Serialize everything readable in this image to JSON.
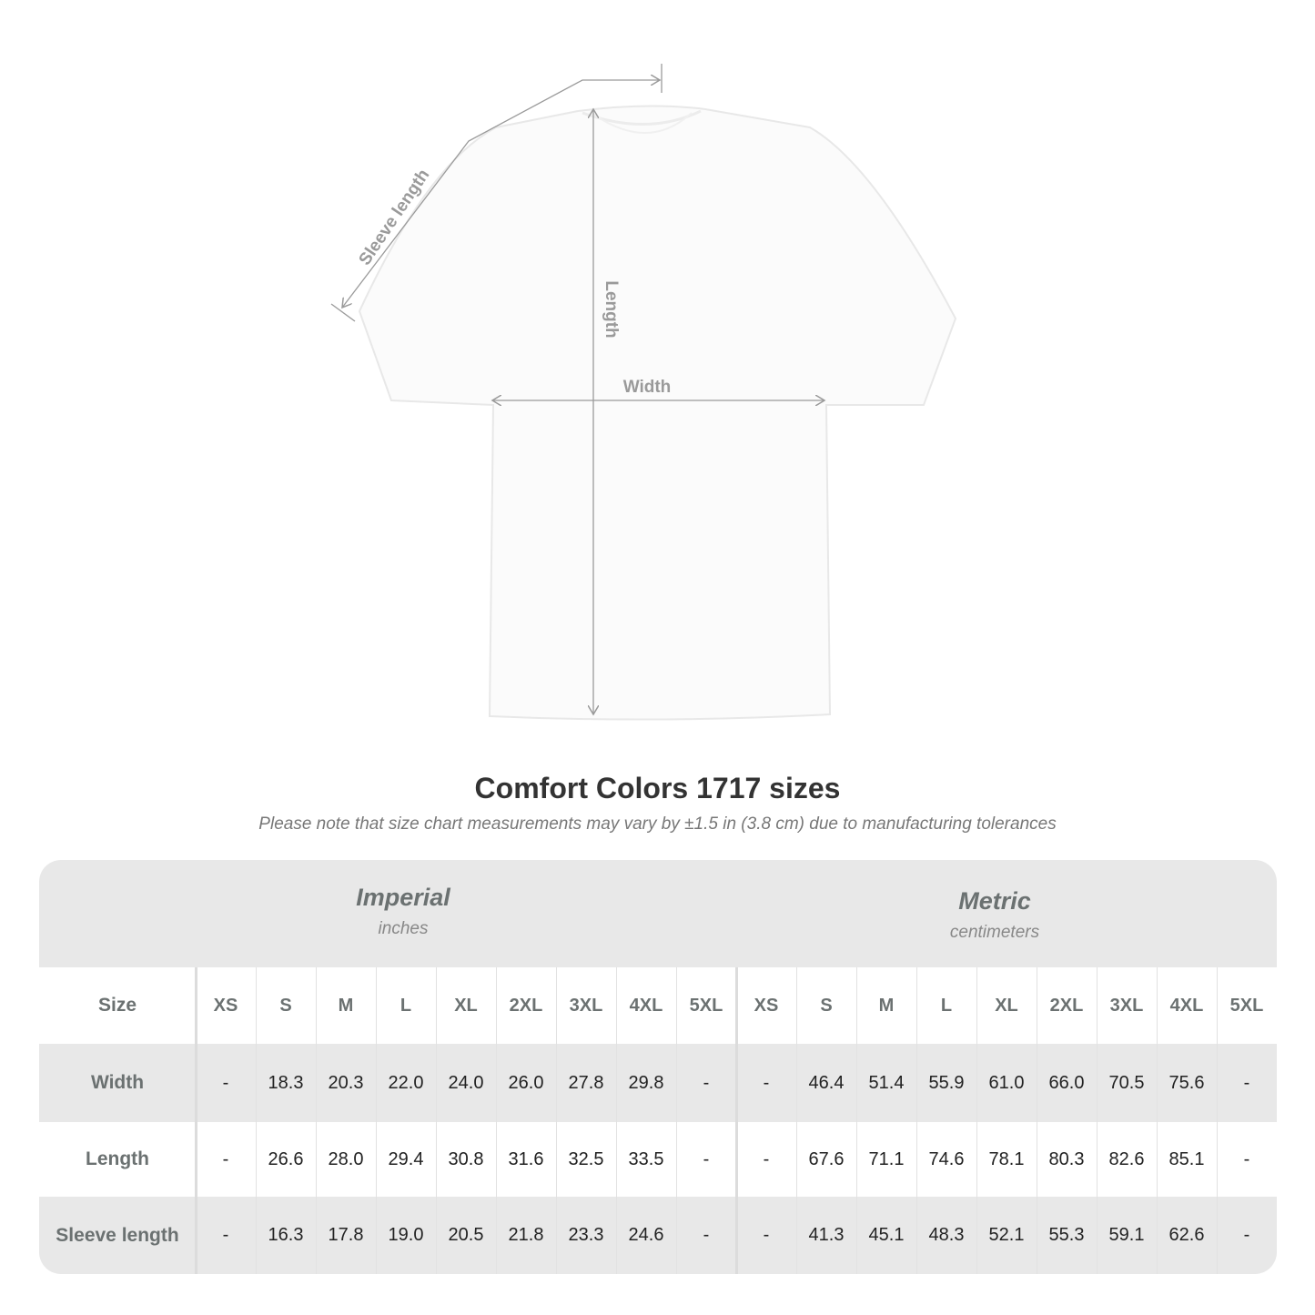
{
  "diagram": {
    "sleeve_label": "Sleeve length",
    "length_label": "Length",
    "width_label": "Width"
  },
  "title": "Comfort Colors 1717 sizes",
  "subtitle": "Please note that size chart measurements may vary by ±1.5 in (3.8 cm) due to manufacturing tolerances",
  "table": {
    "imperial": {
      "name": "Imperial",
      "unit": "inches"
    },
    "metric": {
      "name": "Metric",
      "unit": "centimeters"
    },
    "size_header": "Size",
    "sizes": [
      "XS",
      "S",
      "M",
      "L",
      "XL",
      "2XL",
      "3XL",
      "4XL",
      "5XL"
    ],
    "rows": [
      {
        "label": "Width",
        "imperial": [
          "-",
          "18.3",
          "20.3",
          "22.0",
          "24.0",
          "26.0",
          "27.8",
          "29.8",
          "-"
        ],
        "metric": [
          "-",
          "46.4",
          "51.4",
          "55.9",
          "61.0",
          "66.0",
          "70.5",
          "75.6",
          "-"
        ]
      },
      {
        "label": "Length",
        "imperial": [
          "-",
          "26.6",
          "28.0",
          "29.4",
          "30.8",
          "31.6",
          "32.5",
          "33.5",
          "-"
        ],
        "metric": [
          "-",
          "67.6",
          "71.1",
          "74.6",
          "78.1",
          "80.3",
          "82.6",
          "85.1",
          "-"
        ]
      },
      {
        "label": "Sleeve length",
        "imperial": [
          "-",
          "16.3",
          "17.8",
          "19.0",
          "20.5",
          "21.8",
          "23.3",
          "24.6",
          "-"
        ],
        "metric": [
          "-",
          "41.3",
          "45.1",
          "48.3",
          "52.1",
          "55.3",
          "59.1",
          "62.6",
          "-"
        ]
      }
    ]
  },
  "colors": {
    "band": "#e8e8e8",
    "label": "#6b7171",
    "measure_line": "#9a9a9a"
  }
}
